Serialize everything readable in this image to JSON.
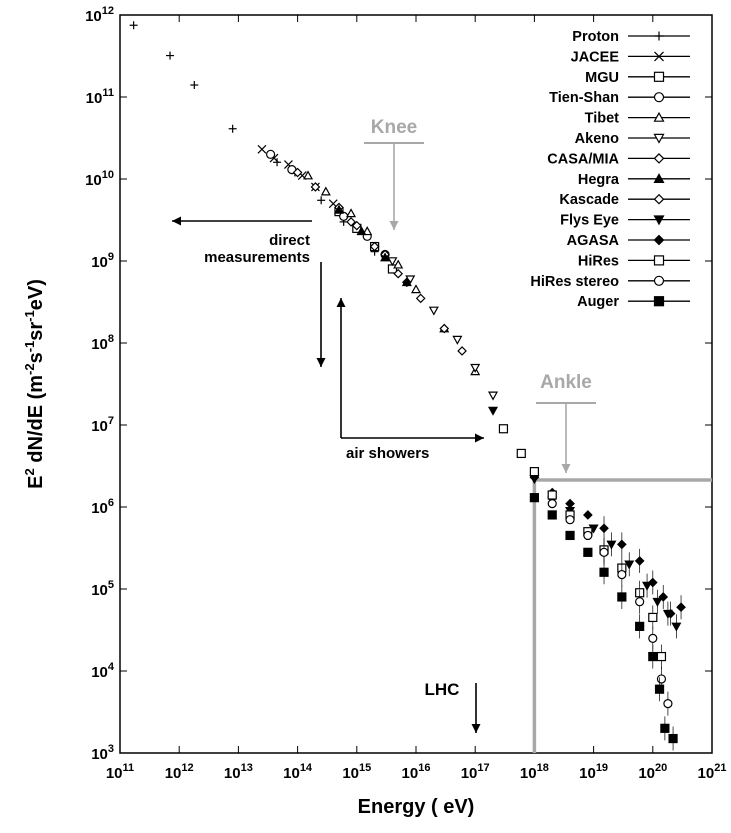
{
  "chart_data": {
    "type": "scatter",
    "xlabel": "Energy ( eV)",
    "ylabel_parts": [
      "E",
      "2",
      " dN/dE (m",
      "-2",
      "s",
      "-1",
      "sr",
      "-1",
      "eV)"
    ],
    "x_log": true,
    "y_log": true,
    "xlim": [
      100000000000.0,
      1e+21
    ],
    "ylim": [
      1000.0,
      1000000000000.0
    ],
    "x_tick_exponents": [
      "11",
      "12",
      "13",
      "14",
      "15",
      "16",
      "17",
      "18",
      "19",
      "20",
      "21"
    ],
    "y_tick_exponents": [
      "3",
      "4",
      "5",
      "6",
      "7",
      "8",
      "9",
      "10",
      "11",
      "12"
    ],
    "legend_position": "top-right",
    "series": [
      {
        "name": "Proton",
        "marker": "plus",
        "points": [
          [
            170000000000.0,
            750000000000.0
          ],
          [
            700000000000.0,
            320000000000.0
          ],
          [
            1800000000000.0,
            140000000000.0
          ],
          [
            8000000000000.0,
            41000000000.0
          ],
          [
            45000000000000.0,
            16000000000.0
          ],
          [
            90000000000000.0,
            12000000000.0
          ],
          [
            250000000000000.0,
            5500000000.0
          ],
          [
            600000000000000.0,
            3000000000.0
          ],
          [
            2000000000000000.0,
            1300000000.0
          ],
          [
            5000000000000000.0,
            700000000.0
          ]
        ]
      },
      {
        "name": "JACEE",
        "marker": "x",
        "points": [
          [
            25000000000000.0,
            23000000000.0
          ],
          [
            40000000000000.0,
            18000000000.0
          ],
          [
            70000000000000.0,
            15000000000.0
          ],
          [
            120000000000000.0,
            11000000000.0
          ],
          [
            200000000000000.0,
            8000000000.0
          ],
          [
            400000000000000.0,
            5000000000.0
          ]
        ]
      },
      {
        "name": "MGU",
        "marker": "square-open",
        "points": [
          [
            500000000000000.0,
            4000000000.0
          ],
          [
            1000000000000000.0,
            2500000000.0
          ],
          [
            2000000000000000.0,
            1500000000.0
          ],
          [
            4000000000000000.0,
            800000000.0
          ]
        ]
      },
      {
        "name": "Tien-Shan",
        "marker": "circle-open",
        "points": [
          [
            35000000000000.0,
            20000000000.0
          ],
          [
            80000000000000.0,
            13000000000.0
          ],
          [
            600000000000000.0,
            3500000000.0
          ],
          [
            1500000000000000.0,
            2000000000.0
          ],
          [
            3000000000000000.0,
            1200000000.0
          ]
        ]
      },
      {
        "name": "Tibet",
        "marker": "triangle-open",
        "points": [
          [
            150000000000000.0,
            11000000000.0
          ],
          [
            300000000000000.0,
            7000000000.0
          ],
          [
            800000000000000.0,
            3800000000.0
          ],
          [
            1500000000000000.0,
            2300000000.0
          ],
          [
            5000000000000000.0,
            900000000.0
          ],
          [
            1e+16,
            450000000.0
          ],
          [
            3e+16,
            150000000.0
          ],
          [
            1e+17,
            45000000.0
          ]
        ]
      },
      {
        "name": "Akeno",
        "marker": "triangle-down-open",
        "points": [
          [
            4000000000000000.0,
            1000000000.0
          ],
          [
            8000000000000000.0,
            600000000.0
          ],
          [
            2e+16,
            250000000.0
          ],
          [
            5e+16,
            110000000.0
          ],
          [
            1e+17,
            50000000.0
          ],
          [
            2e+17,
            23000000.0
          ]
        ]
      },
      {
        "name": "CASA/MIA",
        "marker": "diamond-open",
        "points": [
          [
            100000000000000.0,
            12000000000.0
          ],
          [
            200000000000000.0,
            8000000000.0
          ],
          [
            500000000000000.0,
            4500000000.0
          ],
          [
            1000000000000000.0,
            2700000000.0
          ],
          [
            3000000000000000.0,
            1200000000.0
          ],
          [
            7000000000000000.0,
            550000000.0
          ]
        ]
      },
      {
        "name": "Hegra",
        "marker": "triangle-filled",
        "points": [
          [
            500000000000000.0,
            4200000000.0
          ],
          [
            1200000000000000.0,
            2300000000.0
          ],
          [
            3000000000000000.0,
            1100000000.0
          ],
          [
            7000000000000000.0,
            550000000.0
          ]
        ]
      },
      {
        "name": "Kascade",
        "marker": "diamond-open",
        "points": [
          [
            800000000000000.0,
            3000000000.0
          ],
          [
            2000000000000000.0,
            1500000000.0
          ],
          [
            5000000000000000.0,
            700000000.0
          ],
          [
            1.2e+16,
            350000000.0
          ],
          [
            3e+16,
            150000000.0
          ],
          [
            6e+16,
            80000000.0
          ]
        ]
      },
      {
        "name": "Flys Eye",
        "marker": "triangle-down-filled",
        "points": [
          [
            2e+17,
            15000000.0
          ],
          [
            1e+18,
            2200000.0
          ],
          [
            2e+18,
            1200000.0
          ],
          [
            4e+18,
            900000.0
          ],
          [
            1e+19,
            550000.0
          ],
          [
            2e+19,
            350000.0
          ],
          [
            4e+19,
            200000.0
          ],
          [
            8e+19,
            110000.0
          ],
          [
            1.2e+20,
            70000.0
          ],
          [
            1.8e+20,
            50000.0
          ],
          [
            2.5e+20,
            35000.0
          ]
        ]
      },
      {
        "name": "AGASA",
        "marker": "diamond-filled",
        "points": [
          [
            1e+18,
            2300000.0
          ],
          [
            2e+18,
            1500000.0
          ],
          [
            4e+18,
            1100000.0
          ],
          [
            8e+18,
            800000.0
          ],
          [
            1.5e+19,
            550000.0
          ],
          [
            3e+19,
            350000.0
          ],
          [
            6e+19,
            220000.0
          ],
          [
            1e+20,
            120000.0
          ],
          [
            1.5e+20,
            80000.0
          ],
          [
            2e+20,
            50000.0
          ],
          [
            3e+20,
            60000.0
          ]
        ]
      },
      {
        "name": "HiRes",
        "marker": "square-open",
        "points": [
          [
            3e+17,
            9000000.0
          ],
          [
            6e+17,
            4500000.0
          ],
          [
            1e+18,
            2700000.0
          ],
          [
            2e+18,
            1400000.0
          ],
          [
            4e+18,
            800000.0
          ],
          [
            8e+18,
            500000.0
          ],
          [
            1.5e+19,
            300000.0
          ],
          [
            3e+19,
            180000.0
          ],
          [
            6e+19,
            90000.0
          ],
          [
            1e+20,
            45000.0
          ],
          [
            1.4e+20,
            15000.0
          ]
        ]
      },
      {
        "name": "HiRes stereo",
        "marker": "circle-open",
        "points": [
          [
            2e+18,
            1100000.0
          ],
          [
            4e+18,
            700000.0
          ],
          [
            8e+18,
            450000.0
          ],
          [
            1.5e+19,
            280000.0
          ],
          [
            3e+19,
            150000.0
          ],
          [
            6e+19,
            70000.0
          ],
          [
            1e+20,
            25000.0
          ],
          [
            1.4e+20,
            8000.0
          ],
          [
            1.8e+20,
            4000.0
          ]
        ]
      },
      {
        "name": "Auger",
        "marker": "square-filled",
        "points": [
          [
            1e+18,
            1300000.0
          ],
          [
            2e+18,
            800000.0
          ],
          [
            4e+18,
            450000.0
          ],
          [
            8e+18,
            280000.0
          ],
          [
            1.5e+19,
            160000.0
          ],
          [
            3e+19,
            80000.0
          ],
          [
            6e+19,
            35000.0
          ],
          [
            1e+20,
            15000.0
          ],
          [
            1.3e+20,
            6000.0
          ],
          [
            1.6e+20,
            2000.0
          ],
          [
            2.2e+20,
            1500.0
          ]
        ]
      }
    ],
    "annotations": {
      "knee": "Knee",
      "ankle": "Ankle",
      "direct": [
        "direct",
        "measurements"
      ],
      "air_showers": "air showers",
      "lhc": "LHC"
    },
    "colors": {
      "axis": "#000000",
      "gray_annotation": "#a8a8a8",
      "marker": "#000000"
    }
  }
}
